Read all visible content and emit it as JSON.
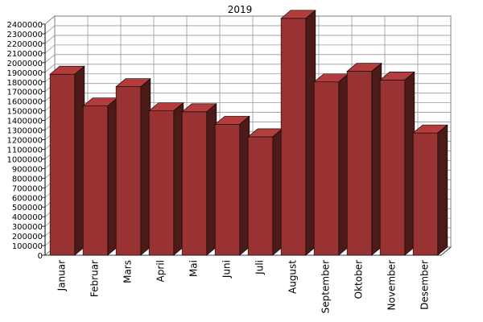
{
  "chart_data": {
    "type": "bar",
    "title": "2019",
    "xlabel": "",
    "ylabel": "",
    "categories": [
      "Januar",
      "Februar",
      "Mars",
      "April",
      "Mai",
      "Juni",
      "Juli",
      "August",
      "September",
      "Oktober",
      "November",
      "Desember"
    ],
    "values": [
      1880000,
      1550000,
      1750000,
      1500000,
      1490000,
      1360000,
      1230000,
      2460000,
      1800000,
      1910000,
      1820000,
      1270000
    ],
    "ylim": [
      0,
      2400000
    ],
    "yticks": [
      0,
      100000,
      200000,
      300000,
      400000,
      500000,
      600000,
      700000,
      800000,
      900000,
      1000000,
      1100000,
      1200000,
      1300000,
      1400000,
      1500000,
      1600000,
      1700000,
      1800000,
      1900000,
      2000000,
      2100000,
      2200000,
      2300000,
      2400000
    ],
    "grid": true,
    "legend": "none",
    "colors": {
      "bar_front": "#993333",
      "bar_top": "#b33c3c",
      "bar_side": "#4d1a1a",
      "grid": "#999999",
      "wall": "#ffffff",
      "axis": "#000000"
    }
  }
}
